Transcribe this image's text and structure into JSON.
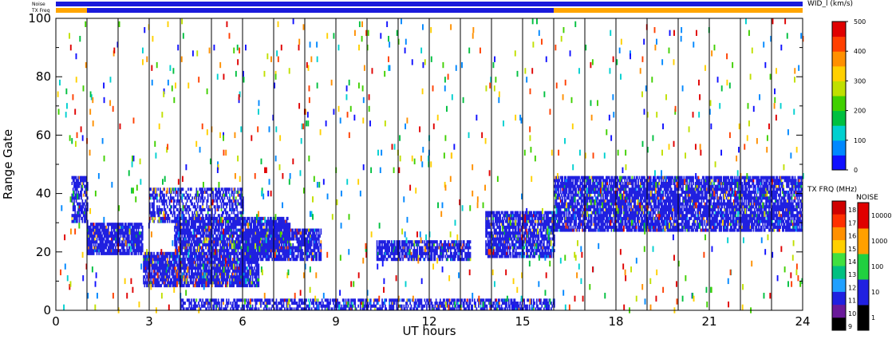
{
  "chart_data": {
    "type": "heatmap",
    "xlabel": "UT hours",
    "ylabel": "Range Gate",
    "xlim": [
      0,
      24
    ],
    "ylim": [
      0,
      100
    ],
    "x_ticks": [
      "0",
      "3",
      "6",
      "9",
      "12",
      "15",
      "18",
      "21",
      "24"
    ],
    "x_tick_values": [
      0,
      3,
      6,
      9,
      12,
      15,
      18,
      21,
      24
    ],
    "y_ticks": [
      "0",
      "20",
      "40",
      "60",
      "80",
      "100"
    ],
    "y_tick_values": [
      0,
      20,
      40,
      60,
      80,
      100
    ],
    "hour_lines": [
      1,
      2,
      3,
      4,
      5,
      6,
      7,
      8,
      9,
      10,
      11,
      12,
      13,
      14,
      15,
      16,
      17,
      18,
      19,
      20,
      21,
      22,
      23
    ],
    "status_bars": {
      "noise_label": "Noise",
      "txfreq_label": "TX Freq",
      "noise_color": "#1a1adb",
      "txfreq_segments": [
        {
          "start": 0,
          "end": 1,
          "color": "#ffa500"
        },
        {
          "start": 1,
          "end": 16,
          "color": "#1a1adb"
        },
        {
          "start": 16,
          "end": 24,
          "color": "#ffa500"
        }
      ]
    },
    "dominant_color": "#2020e0",
    "echo_regions": [
      {
        "name": "early-band",
        "t0": 0.5,
        "t1": 1.0,
        "g0": 30,
        "g1": 46,
        "density": 0.7
      },
      {
        "name": "main-band",
        "t0": 1.0,
        "t1": 2.8,
        "g0": 19,
        "g1": 30,
        "density": 0.85
      },
      {
        "name": "lower-band",
        "t0": 2.8,
        "t1": 6.5,
        "g0": 8,
        "g1": 20,
        "density": 0.85
      },
      {
        "name": "upper-band",
        "t0": 3.8,
        "t1": 7.5,
        "g0": 20,
        "g1": 32,
        "density": 0.8
      },
      {
        "name": "mid-band",
        "t0": 6.0,
        "t1": 8.5,
        "g0": 17,
        "g1": 28,
        "density": 0.8
      },
      {
        "name": "diag-rise",
        "t0": 3.0,
        "t1": 6.0,
        "g0": 30,
        "g1": 42,
        "density": 0.5
      },
      {
        "name": "day-band",
        "t0": 10.3,
        "t1": 13.3,
        "g0": 17,
        "g1": 24,
        "density": 0.75
      },
      {
        "name": "pre-16-band",
        "t0": 13.8,
        "t1": 16.0,
        "g0": 18,
        "g1": 34,
        "density": 0.75
      },
      {
        "name": "night-band",
        "t0": 16.0,
        "t1": 24.0,
        "g0": 27,
        "g1": 46,
        "density": 0.8
      },
      {
        "name": "ground-gates",
        "t0": 4.0,
        "t1": 16.0,
        "g0": 0,
        "g1": 4,
        "density": 0.6
      }
    ],
    "widerror_colorbar": {
      "label": "WID_l (km/s)",
      "ticks": [
        "0",
        "100",
        "200",
        "300",
        "400",
        "500"
      ],
      "tick_values": [
        0,
        100,
        200,
        300,
        400,
        500
      ],
      "colors": [
        "#1010ff",
        "#0088ff",
        "#00d0d0",
        "#00c040",
        "#40d000",
        "#c0e000",
        "#ffd000",
        "#ff9000",
        "#ff4000",
        "#e00000"
      ]
    },
    "txfreq_colorbar": {
      "label": "TX FRQ (MHz)",
      "ticks": [
        "9",
        "10",
        "11",
        "12",
        "13",
        "14",
        "15",
        "16",
        "17",
        "18"
      ],
      "colors": [
        "#000000",
        "#6a1a9a",
        "#2020e0",
        "#20a0ff",
        "#00c080",
        "#40e040",
        "#ffd000",
        "#ff9000",
        "#ff3000",
        "#d00000"
      ]
    },
    "noise_colorbar": {
      "label": "NOISE",
      "ticks": [
        "1",
        "10",
        "100",
        "1000",
        "10000"
      ],
      "colors": [
        "#000000",
        "#2020e0",
        "#20d040",
        "#ffa000",
        "#e00000"
      ]
    }
  }
}
